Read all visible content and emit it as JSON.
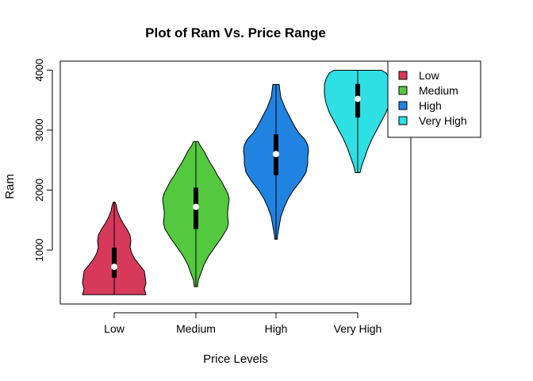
{
  "chart_data": {
    "type": "violin",
    "title": "Plot of Ram Vs. Price Range",
    "xlabel": "Price Levels",
    "ylabel": "Ram",
    "ylim": [
      100,
      4150
    ],
    "yticks": [
      "1000",
      "2000",
      "3000",
      "4000"
    ],
    "categories": [
      "Low",
      "Medium",
      "High",
      "Very High"
    ],
    "colors": [
      "#d6395a",
      "#54c93f",
      "#2083e2",
      "#2edfe3"
    ],
    "legend_position": "top-right",
    "legend": [
      "Low",
      "Medium",
      "High",
      "Very High"
    ],
    "series": [
      {
        "category": "Low",
        "min": 256,
        "q1": 540,
        "median": 720,
        "q3": 1040,
        "max": 1800,
        "density": [
          [
            256,
            40
          ],
          [
            350,
            38
          ],
          [
            450,
            40
          ],
          [
            550,
            39
          ],
          [
            650,
            38
          ],
          [
            750,
            32
          ],
          [
            850,
            26
          ],
          [
            950,
            22
          ],
          [
            1050,
            20
          ],
          [
            1150,
            21
          ],
          [
            1250,
            20
          ],
          [
            1350,
            16
          ],
          [
            1450,
            11
          ],
          [
            1550,
            7
          ],
          [
            1650,
            4
          ],
          [
            1750,
            2.5
          ],
          [
            1800,
            1
          ]
        ]
      },
      {
        "category": "Medium",
        "min": 390,
        "q1": 1350,
        "median": 1720,
        "q3": 2040,
        "max": 2810,
        "density": [
          [
            390,
            2
          ],
          [
            500,
            3
          ],
          [
            600,
            6
          ],
          [
            750,
            10
          ],
          [
            900,
            16
          ],
          [
            1050,
            24
          ],
          [
            1200,
            32
          ],
          [
            1350,
            39
          ],
          [
            1450,
            41
          ],
          [
            1550,
            40
          ],
          [
            1650,
            40
          ],
          [
            1750,
            41
          ],
          [
            1850,
            42
          ],
          [
            1950,
            40
          ],
          [
            2050,
            36
          ],
          [
            2150,
            32
          ],
          [
            2250,
            27
          ],
          [
            2350,
            23
          ],
          [
            2450,
            18
          ],
          [
            2550,
            14
          ],
          [
            2650,
            10
          ],
          [
            2750,
            5
          ],
          [
            2810,
            3
          ]
        ]
      },
      {
        "category": "High",
        "min": 1180,
        "q1": 2250,
        "median": 2600,
        "q3": 2930,
        "max": 3760,
        "density": [
          [
            1180,
            1.5
          ],
          [
            1250,
            2
          ],
          [
            1400,
            4
          ],
          [
            1550,
            6
          ],
          [
            1700,
            10
          ],
          [
            1850,
            15
          ],
          [
            2000,
            22
          ],
          [
            2150,
            31
          ],
          [
            2300,
            38
          ],
          [
            2450,
            40
          ],
          [
            2550,
            40
          ],
          [
            2650,
            41
          ],
          [
            2750,
            40
          ],
          [
            2850,
            36
          ],
          [
            2950,
            29
          ],
          [
            3050,
            24
          ],
          [
            3150,
            20
          ],
          [
            3250,
            16
          ],
          [
            3350,
            12
          ],
          [
            3450,
            9
          ],
          [
            3550,
            6
          ],
          [
            3650,
            5
          ],
          [
            3760,
            4
          ]
        ]
      },
      {
        "category": "Very High",
        "min": 2290,
        "q1": 3210,
        "median": 3520,
        "q3": 3770,
        "max": 3998,
        "density": [
          [
            2290,
            3
          ],
          [
            2400,
            5
          ],
          [
            2550,
            9
          ],
          [
            2700,
            13
          ],
          [
            2850,
            18
          ],
          [
            3000,
            24
          ],
          [
            3150,
            30
          ],
          [
            3300,
            36
          ],
          [
            3450,
            40
          ],
          [
            3600,
            42
          ],
          [
            3750,
            42
          ],
          [
            3850,
            40
          ],
          [
            3950,
            36
          ],
          [
            3998,
            30
          ]
        ]
      }
    ]
  }
}
